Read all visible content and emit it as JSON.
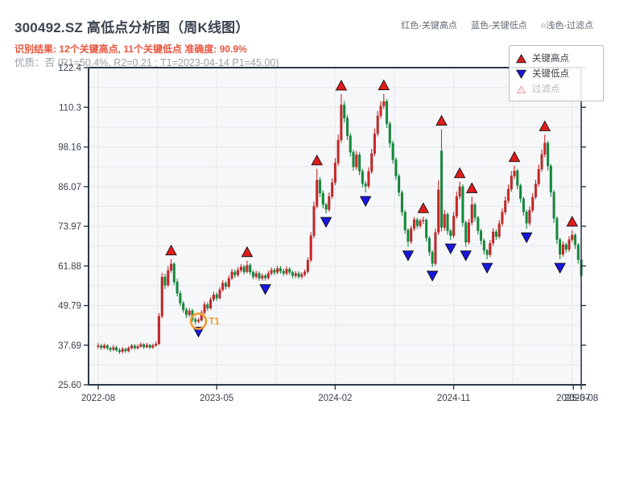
{
  "header": {
    "title": "300492.SZ 高低点分析图（周K线图）",
    "result_line": "识别结果: 12个关键高点, 11个关键低点  准确度: 90.9%",
    "quality_line": "优质：否 (R1=50.4%, R2=0.21 ; T1=2023-04-14 P1=45.00)",
    "color_key": {
      "high": "红色-关键高点",
      "low": "蓝色-关键低点",
      "filtered": "○浅色-过滤点"
    }
  },
  "legend": {
    "items": [
      {
        "label": "关键高点",
        "type": "key-high"
      },
      {
        "label": "关键低点",
        "type": "key-low"
      },
      {
        "label": "过滤点",
        "type": "filtered"
      }
    ]
  },
  "colors": {
    "candle_up": "#d02424",
    "candle_down": "#0f8f3a",
    "key_high_marker": "#e11c1c",
    "key_low_marker": "#1717dd",
    "filtered_marker_fill": "#fdeaea",
    "filtered_marker_edge": "#e8a4a4",
    "t1_orange": "#f39c2b",
    "result_text_red": "#e8543e",
    "muted_text": "#98a0a8",
    "axis_spine": "#2b3948",
    "grid": "#e4e7ec",
    "plot_bg": "#f6f7f9",
    "tick_text": "#39424e"
  },
  "chart_data": {
    "type": "candlestick",
    "timeframe": "weekly",
    "title": "300492.SZ 高低点分析图（周K线图）",
    "ylim": [
      25.6,
      122.4
    ],
    "yticks": [
      {
        "label": "122.4",
        "v": 122.4
      },
      {
        "label": "110.3",
        "v": 110.3
      },
      {
        "label": "98.16",
        "v": 98.16
      },
      {
        "label": "86.07",
        "v": 86.07
      },
      {
        "label": "73.97",
        "v": 73.97
      },
      {
        "label": "61.88",
        "v": 61.88
      },
      {
        "label": "49.79",
        "v": 49.79
      },
      {
        "label": "37.69",
        "v": 37.69
      },
      {
        "label": "25.60",
        "v": 25.6
      }
    ],
    "xticks": [
      {
        "label": "2022-08",
        "week": 0
      },
      {
        "label": "2023-05",
        "week": 39
      },
      {
        "label": "2024-02",
        "week": 78
      },
      {
        "label": "2024-11",
        "week": 117
      },
      {
        "label": "2025-07",
        "week": 156.4
      },
      {
        "label": "2025-08",
        "week": 159
      }
    ],
    "candles": [
      [
        37.2,
        37.5,
        38.3,
        36.6
      ],
      [
        37.5,
        36.9,
        38.1,
        36.3
      ],
      [
        36.9,
        37.6,
        38.2,
        36.5
      ],
      [
        37.6,
        36.8,
        38.0,
        36.2
      ],
      [
        36.8,
        36.3,
        37.2,
        35.6
      ],
      [
        36.3,
        37.0,
        37.7,
        35.9
      ],
      [
        37.0,
        36.2,
        37.5,
        35.7
      ],
      [
        36.2,
        35.7,
        36.8,
        35.0
      ],
      [
        35.7,
        36.5,
        37.1,
        35.2
      ],
      [
        36.5,
        35.9,
        36.9,
        35.3
      ],
      [
        35.9,
        36.8,
        37.4,
        35.5
      ],
      [
        36.8,
        37.5,
        38.1,
        36.4
      ],
      [
        37.5,
        36.8,
        38.0,
        36.3
      ],
      [
        36.8,
        37.3,
        37.9,
        36.4
      ],
      [
        37.3,
        37.9,
        38.5,
        36.9
      ],
      [
        37.9,
        37.1,
        38.3,
        36.6
      ],
      [
        37.1,
        37.7,
        38.4,
        36.8
      ],
      [
        37.7,
        37.0,
        38.1,
        36.5
      ],
      [
        37.0,
        37.6,
        38.2,
        36.6
      ],
      [
        37.6,
        38.1,
        38.8,
        37.2
      ],
      [
        38.1,
        46.5,
        47.5,
        37.8
      ],
      [
        46.5,
        58.5,
        59.8,
        45.9
      ],
      [
        58.5,
        56.0,
        59.5,
        54.8
      ],
      [
        56.0,
        60.5,
        61.8,
        55.4
      ],
      [
        60.5,
        62.5,
        64.0,
        59.8
      ],
      [
        62.5,
        57.0,
        63.0,
        56.0
      ],
      [
        57.0,
        53.5,
        58.0,
        52.6
      ],
      [
        53.5,
        50.5,
        54.3,
        49.6
      ],
      [
        50.5,
        48.5,
        51.2,
        47.6
      ],
      [
        48.5,
        47.0,
        49.2,
        46.0
      ],
      [
        47.0,
        48.2,
        49.0,
        46.3
      ],
      [
        48.2,
        45.6,
        48.8,
        44.8
      ],
      [
        45.6,
        44.9,
        46.2,
        44.0
      ],
      [
        44.9,
        45.3,
        46.0,
        44.4
      ],
      [
        45.3,
        47.6,
        48.4,
        44.9
      ],
      [
        47.6,
        50.1,
        51.0,
        47.1
      ],
      [
        50.1,
        49.0,
        50.8,
        48.2
      ],
      [
        49.0,
        51.6,
        52.4,
        48.5
      ],
      [
        51.6,
        53.1,
        54.0,
        51.0
      ],
      [
        53.1,
        52.1,
        53.8,
        51.2
      ],
      [
        52.1,
        54.6,
        55.4,
        51.6
      ],
      [
        54.6,
        56.6,
        57.5,
        54.0
      ],
      [
        56.6,
        55.6,
        57.2,
        54.7
      ],
      [
        55.6,
        58.1,
        59.0,
        55.0
      ],
      [
        58.1,
        60.1,
        61.0,
        57.5
      ],
      [
        60.1,
        59.1,
        60.8,
        58.2
      ],
      [
        59.1,
        60.6,
        61.5,
        58.5
      ],
      [
        60.6,
        61.6,
        62.4,
        59.9
      ],
      [
        61.6,
        60.1,
        62.2,
        59.3
      ],
      [
        60.1,
        62.1,
        63.5,
        59.6
      ],
      [
        62.1,
        60.0,
        62.7,
        59.2
      ],
      [
        60.0,
        58.6,
        60.6,
        57.8
      ],
      [
        58.6,
        59.6,
        60.4,
        57.9
      ],
      [
        59.6,
        58.1,
        60.2,
        57.3
      ],
      [
        58.1,
        58.9,
        59.6,
        57.4
      ],
      [
        58.9,
        58.2,
        59.4,
        57.4
      ],
      [
        58.2,
        59.6,
        60.4,
        57.7
      ],
      [
        59.6,
        60.6,
        61.4,
        59.0
      ],
      [
        60.6,
        59.9,
        61.2,
        59.1
      ],
      [
        59.9,
        61.1,
        61.9,
        59.3
      ],
      [
        61.1,
        60.3,
        61.8,
        59.5
      ],
      [
        60.3,
        59.6,
        61.0,
        58.8
      ],
      [
        59.6,
        60.9,
        61.7,
        59.0
      ],
      [
        60.9,
        59.9,
        61.5,
        59.1
      ],
      [
        59.9,
        58.9,
        60.5,
        58.1
      ],
      [
        58.9,
        59.6,
        60.3,
        58.2
      ],
      [
        59.6,
        58.6,
        60.2,
        57.9
      ],
      [
        58.6,
        59.3,
        60.0,
        57.9
      ],
      [
        59.3,
        60.1,
        60.8,
        58.6
      ],
      [
        60.1,
        63.6,
        64.5,
        59.6
      ],
      [
        63.6,
        71.1,
        72.2,
        63.0
      ],
      [
        71.1,
        80.1,
        81.5,
        70.3
      ],
      [
        80.1,
        88.1,
        91.5,
        79.4
      ],
      [
        88.1,
        84.1,
        89.0,
        82.9
      ],
      [
        84.1,
        80.6,
        85.0,
        79.5
      ],
      [
        80.6,
        79.1,
        81.2,
        77.9
      ],
      [
        79.1,
        83.1,
        84.3,
        78.4
      ],
      [
        83.1,
        87.3,
        88.6,
        82.4
      ],
      [
        87.3,
        93.3,
        94.8,
        86.5
      ],
      [
        93.3,
        100.3,
        102.0,
        92.4
      ],
      [
        100.3,
        111.0,
        114.3,
        99.5
      ],
      [
        111.0,
        107.0,
        112.2,
        105.6
      ],
      [
        107.0,
        101.6,
        108.0,
        100.3
      ],
      [
        101.6,
        96.6,
        102.4,
        95.3
      ],
      [
        96.6,
        92.1,
        97.4,
        90.9
      ],
      [
        92.1,
        95.8,
        97.0,
        91.2
      ],
      [
        95.8,
        90.8,
        96.5,
        89.6
      ],
      [
        90.8,
        87.0,
        91.5,
        85.8
      ],
      [
        87.0,
        86.2,
        87.8,
        84.3
      ],
      [
        86.2,
        90.7,
        92.0,
        85.5
      ],
      [
        90.7,
        96.2,
        97.6,
        90.0
      ],
      [
        96.2,
        102.2,
        103.8,
        95.4
      ],
      [
        102.2,
        107.7,
        109.2,
        101.4
      ],
      [
        107.7,
        110.7,
        112.2,
        106.8
      ],
      [
        110.7,
        112.1,
        114.4,
        109.8
      ],
      [
        112.1,
        105.3,
        112.8,
        104.0
      ],
      [
        105.3,
        99.3,
        106.0,
        98.0
      ],
      [
        99.3,
        94.3,
        100.1,
        93.1
      ],
      [
        94.3,
        89.3,
        95.0,
        88.1
      ],
      [
        89.3,
        84.3,
        90.0,
        83.1
      ],
      [
        84.3,
        78.3,
        85.0,
        77.2
      ],
      [
        78.3,
        72.8,
        79.0,
        71.7
      ],
      [
        72.8,
        69.3,
        73.4,
        67.7
      ],
      [
        69.3,
        73.3,
        74.2,
        68.6
      ],
      [
        73.3,
        76.0,
        76.8,
        72.5
      ],
      [
        76.0,
        74.1,
        76.6,
        73.2
      ],
      [
        74.1,
        75.6,
        76.3,
        73.4
      ],
      [
        75.6,
        75.9,
        76.9,
        74.7
      ],
      [
        75.9,
        70.4,
        76.4,
        69.3
      ],
      [
        70.4,
        66.1,
        71.0,
        65.0
      ],
      [
        66.1,
        62.6,
        66.7,
        61.5
      ],
      [
        62.6,
        72.1,
        73.3,
        62.0
      ],
      [
        72.1,
        85.1,
        88.0,
        71.3
      ],
      [
        97.0,
        73.6,
        103.6,
        72.4
      ],
      [
        73.6,
        77.6,
        79.0,
        72.6
      ],
      [
        77.6,
        72.6,
        78.2,
        71.4
      ],
      [
        72.6,
        71.1,
        73.2,
        69.8
      ],
      [
        71.1,
        77.1,
        78.4,
        70.4
      ],
      [
        77.1,
        83.1,
        84.6,
        76.3
      ],
      [
        83.1,
        86.1,
        87.6,
        82.2
      ],
      [
        86.1,
        75.1,
        86.8,
        73.9
      ],
      [
        75.1,
        69.1,
        75.7,
        67.7
      ],
      [
        69.1,
        75.1,
        76.2,
        68.4
      ],
      [
        75.1,
        80.6,
        83.0,
        74.3
      ],
      [
        80.6,
        76.6,
        81.2,
        75.4
      ],
      [
        76.6,
        72.6,
        77.2,
        71.4
      ],
      [
        72.6,
        69.6,
        73.2,
        68.4
      ],
      [
        69.6,
        66.6,
        70.2,
        65.4
      ],
      [
        66.6,
        65.3,
        67.1,
        63.9
      ],
      [
        65.3,
        68.8,
        69.8,
        64.6
      ],
      [
        68.8,
        72.3,
        73.4,
        68.0
      ],
      [
        72.3,
        70.8,
        73.0,
        69.8
      ],
      [
        70.8,
        74.8,
        75.9,
        70.1
      ],
      [
        74.8,
        78.3,
        79.5,
        74.0
      ],
      [
        78.3,
        81.8,
        83.1,
        77.5
      ],
      [
        81.8,
        85.3,
        86.7,
        81.0
      ],
      [
        85.3,
        89.3,
        90.8,
        84.5
      ],
      [
        89.3,
        90.9,
        92.5,
        88.4
      ],
      [
        90.9,
        86.4,
        91.5,
        85.2
      ],
      [
        86.4,
        82.4,
        87.0,
        81.2
      ],
      [
        82.4,
        78.4,
        83.0,
        77.2
      ],
      [
        78.4,
        74.9,
        79.0,
        73.2
      ],
      [
        74.9,
        78.9,
        80.0,
        74.2
      ],
      [
        78.9,
        82.9,
        84.1,
        78.2
      ],
      [
        82.9,
        86.9,
        88.2,
        82.2
      ],
      [
        86.9,
        91.4,
        92.8,
        86.1
      ],
      [
        91.4,
        95.9,
        97.4,
        90.6
      ],
      [
        95.9,
        99.4,
        101.9,
        95.0
      ],
      [
        99.4,
        92.4,
        100.0,
        91.0
      ],
      [
        92.4,
        84.4,
        93.0,
        83.0
      ],
      [
        84.4,
        76.4,
        85.0,
        75.0
      ],
      [
        76.4,
        69.9,
        77.0,
        68.5
      ],
      [
        69.9,
        65.4,
        70.5,
        63.9
      ],
      [
        65.4,
        68.4,
        69.4,
        64.7
      ],
      [
        68.4,
        66.9,
        69.0,
        65.9
      ],
      [
        66.9,
        69.9,
        70.9,
        66.2
      ],
      [
        69.9,
        71.3,
        72.8,
        69.1
      ],
      [
        71.3,
        68.3,
        71.9,
        67.1
      ],
      [
        68.3,
        63.8,
        68.9,
        62.6
      ],
      [
        63.8,
        58.9,
        64.4,
        57.9
      ]
    ],
    "key_highs": [
      [
        24,
        64.0
      ],
      [
        49,
        63.5
      ],
      [
        72,
        91.5
      ],
      [
        80,
        114.3
      ],
      [
        94,
        114.4
      ],
      [
        107,
        76.9
      ],
      [
        113,
        103.6
      ],
      [
        119,
        87.6
      ],
      [
        123,
        83.0
      ],
      [
        137,
        92.5
      ],
      [
        147,
        101.9
      ],
      [
        156,
        72.8
      ]
    ],
    "key_lows": [
      [
        33,
        44.4
      ],
      [
        55,
        57.4
      ],
      [
        75,
        77.9
      ],
      [
        88,
        84.3
      ],
      [
        102,
        67.7
      ],
      [
        110,
        61.5
      ],
      [
        116,
        69.8
      ],
      [
        121,
        67.7
      ],
      [
        128,
        63.9
      ],
      [
        141,
        73.2
      ],
      [
        152,
        63.9
      ]
    ],
    "t1": {
      "week": 33,
      "price": 45.0,
      "label": "T1"
    },
    "counts": {
      "key_highs": 12,
      "key_lows": 11,
      "accuracy": "90.9%"
    },
    "legend_position": "upper-right",
    "grid": true
  }
}
